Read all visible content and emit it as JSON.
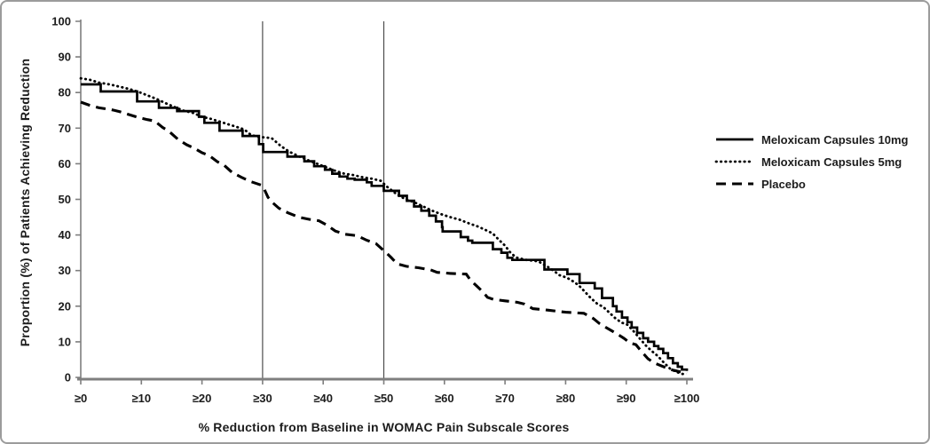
{
  "figure": {
    "background": "#ffffff",
    "border_color": "#9c9c9c"
  },
  "chart_data": {
    "type": "line",
    "title": "",
    "xlabel": "% Reduction from Baseline in WOMAC Pain Subscale Scores",
    "ylabel": "Proportion (%) of Patients Achieving Reduction",
    "xlim": [
      0,
      100
    ],
    "ylim": [
      0,
      100
    ],
    "grid": false,
    "legend_position": "right-outside",
    "axis_color": "#7f7f7f",
    "tick_text_color": "#1c1c1c",
    "reference_line_color": "#4d4d4d",
    "reference_lines_x": [
      30,
      50
    ],
    "x_tick_values": [
      0,
      10,
      20,
      30,
      40,
      50,
      60,
      70,
      80,
      90,
      100
    ],
    "x_tick_labels": [
      "≥0",
      "≥10",
      "≥20",
      "≥30",
      "≥40",
      "≥50",
      "≥60",
      "≥70",
      "≥80",
      "≥90",
      "≥100"
    ],
    "y_tick_values": [
      0,
      10,
      20,
      30,
      40,
      50,
      60,
      70,
      80,
      90,
      100
    ],
    "y_tick_labels": [
      "0",
      "10",
      "20",
      "30",
      "40",
      "50",
      "60",
      "70",
      "80",
      "90",
      "100"
    ],
    "series": [
      {
        "name": "Meloxicam Capsules 10mg",
        "style": "solid",
        "color": "#000000",
        "step": true,
        "points": [
          [
            0,
            82.3
          ],
          [
            3.2,
            82.3
          ],
          [
            3.3,
            80.3
          ],
          [
            9.2,
            80.3
          ],
          [
            9.3,
            77.5
          ],
          [
            12.8,
            77.5
          ],
          [
            12.9,
            75.7
          ],
          [
            15.8,
            75.7
          ],
          [
            15.9,
            74.8
          ],
          [
            19.4,
            74.8
          ],
          [
            19.5,
            73.2
          ],
          [
            20.3,
            73.2
          ],
          [
            20.4,
            71.5
          ],
          [
            22.8,
            71.5
          ],
          [
            22.9,
            69.3
          ],
          [
            26.6,
            69.3
          ],
          [
            26.7,
            67.8
          ],
          [
            29.3,
            67.8
          ],
          [
            29.4,
            65.5
          ],
          [
            30.0,
            65.5
          ],
          [
            30.1,
            63.3
          ],
          [
            34.0,
            63.3
          ],
          [
            34.1,
            62.0
          ],
          [
            36.8,
            62.0
          ],
          [
            36.9,
            60.7
          ],
          [
            38.4,
            60.7
          ],
          [
            38.5,
            59.3
          ],
          [
            40.3,
            58.3
          ],
          [
            41.5,
            57.2
          ],
          [
            42.7,
            56.4
          ],
          [
            44.0,
            55.8
          ],
          [
            45.2,
            55.5
          ],
          [
            47.2,
            54.8
          ],
          [
            48.0,
            53.8
          ],
          [
            49.9,
            53.8
          ],
          [
            50.0,
            52.4
          ],
          [
            51.5,
            52.4
          ],
          [
            52.5,
            51.0
          ],
          [
            53.8,
            49.6
          ],
          [
            55.0,
            48.0
          ],
          [
            56.2,
            46.8
          ],
          [
            57.5,
            45.4
          ],
          [
            58.6,
            43.8
          ],
          [
            59.6,
            42.2
          ],
          [
            59.7,
            41.0
          ],
          [
            62.6,
            41.0
          ],
          [
            62.7,
            39.4
          ],
          [
            63.9,
            38.4
          ],
          [
            64.6,
            37.8
          ],
          [
            67.9,
            37.8
          ],
          [
            68.0,
            36.0
          ],
          [
            69.4,
            35.0
          ],
          [
            70.4,
            33.6
          ],
          [
            71.2,
            33.0
          ],
          [
            76.4,
            33.0
          ],
          [
            76.5,
            30.3
          ],
          [
            80.2,
            30.3
          ],
          [
            80.3,
            29.0
          ],
          [
            82.2,
            29.0
          ],
          [
            82.3,
            26.5
          ],
          [
            84.7,
            26.5
          ],
          [
            84.8,
            25.0
          ],
          [
            85.9,
            25.0
          ],
          [
            86.0,
            22.3
          ],
          [
            87.7,
            22.3
          ],
          [
            87.8,
            20.0
          ],
          [
            88.4,
            18.5
          ],
          [
            89.3,
            16.8
          ],
          [
            90.2,
            15.5
          ],
          [
            90.9,
            14.0
          ],
          [
            91.8,
            12.5
          ],
          [
            92.8,
            11.0
          ],
          [
            93.6,
            10.0
          ],
          [
            94.6,
            8.8
          ],
          [
            95.3,
            8.0
          ],
          [
            96.1,
            6.8
          ],
          [
            96.9,
            5.4
          ],
          [
            97.7,
            4.0
          ],
          [
            98.5,
            3.0
          ],
          [
            99.2,
            2.2
          ],
          [
            100,
            1.8
          ]
        ]
      },
      {
        "name": "Meloxicam Capsules 5mg",
        "style": "dotted",
        "color": "#000000",
        "step": false,
        "points": [
          [
            0,
            84.0
          ],
          [
            1.5,
            83.6
          ],
          [
            3,
            82.8
          ],
          [
            5,
            82.2
          ],
          [
            6.5,
            81.6
          ],
          [
            8,
            81.0
          ],
          [
            9.5,
            80.2
          ],
          [
            11,
            79.2
          ],
          [
            12.5,
            78.2
          ],
          [
            14,
            77.0
          ],
          [
            15.5,
            75.9
          ],
          [
            17,
            74.9
          ],
          [
            18.5,
            74.3
          ],
          [
            20,
            73.2
          ],
          [
            21.5,
            72.6
          ],
          [
            23,
            71.8
          ],
          [
            24.5,
            71.0
          ],
          [
            26,
            70.2
          ],
          [
            27,
            69.6
          ],
          [
            28,
            68.2
          ],
          [
            29,
            67.6
          ],
          [
            31.5,
            67.2
          ],
          [
            33,
            65.0
          ],
          [
            34.5,
            63.3
          ],
          [
            36,
            62.1
          ],
          [
            37.5,
            61.0
          ],
          [
            39,
            60.0
          ],
          [
            40.5,
            59.0
          ],
          [
            42,
            58.0
          ],
          [
            43.5,
            57.2
          ],
          [
            45,
            56.8
          ],
          [
            46.5,
            56.2
          ],
          [
            48,
            55.8
          ],
          [
            49.5,
            55.2
          ],
          [
            50.5,
            53.6
          ],
          [
            52,
            51.6
          ],
          [
            53.5,
            50.1
          ],
          [
            55,
            49.2
          ],
          [
            56.5,
            48.0
          ],
          [
            58,
            46.8
          ],
          [
            59.5,
            45.8
          ],
          [
            61,
            45.0
          ],
          [
            62.5,
            44.3
          ],
          [
            64,
            43.3
          ],
          [
            65.5,
            42.4
          ],
          [
            66.8,
            41.4
          ],
          [
            68,
            40.4
          ],
          [
            69,
            38.6
          ],
          [
            70,
            37.0
          ],
          [
            70.8,
            35.2
          ],
          [
            71.8,
            33.7
          ],
          [
            73.5,
            33.0
          ],
          [
            75.5,
            32.6
          ],
          [
            77,
            31.1
          ],
          [
            78,
            30.0
          ],
          [
            79,
            28.7
          ],
          [
            80.2,
            28.0
          ],
          [
            81.2,
            27.0
          ],
          [
            82.2,
            25.8
          ],
          [
            83.2,
            24.0
          ],
          [
            84.2,
            22.2
          ],
          [
            85.2,
            20.7
          ],
          [
            86.2,
            19.8
          ],
          [
            87.2,
            18.2
          ],
          [
            88.2,
            16.6
          ],
          [
            89.2,
            15.4
          ],
          [
            90.2,
            14.8
          ],
          [
            91.2,
            13.0
          ],
          [
            92.2,
            11.0
          ],
          [
            93.2,
            9.0
          ],
          [
            94.2,
            7.4
          ],
          [
            95.2,
            6.0
          ],
          [
            96.2,
            4.2
          ],
          [
            97.2,
            2.5
          ],
          [
            98.2,
            1.6
          ],
          [
            99.2,
            1.0
          ],
          [
            100,
            0.8
          ]
        ]
      },
      {
        "name": "Placebo",
        "style": "dashed",
        "color": "#000000",
        "step": false,
        "points": [
          [
            0,
            77.3
          ],
          [
            1.5,
            76.4
          ],
          [
            3,
            75.7
          ],
          [
            5,
            75.2
          ],
          [
            6.5,
            74.6
          ],
          [
            8,
            73.8
          ],
          [
            9.5,
            73.0
          ],
          [
            11,
            72.4
          ],
          [
            12.2,
            72.0
          ],
          [
            13.5,
            70.2
          ],
          [
            14.5,
            69.2
          ],
          [
            16,
            66.9
          ],
          [
            17.5,
            65.3
          ],
          [
            18.7,
            64.4
          ],
          [
            20,
            63.1
          ],
          [
            21.2,
            62.3
          ],
          [
            22.5,
            60.6
          ],
          [
            23.7,
            59.5
          ],
          [
            25,
            57.5
          ],
          [
            26.5,
            56.2
          ],
          [
            28,
            55.0
          ],
          [
            29.8,
            54.0
          ],
          [
            30.3,
            52.8
          ],
          [
            30.9,
            50.6
          ],
          [
            31.7,
            49.0
          ],
          [
            32.7,
            47.5
          ],
          [
            34.2,
            46.2
          ],
          [
            36,
            45.0
          ],
          [
            37.7,
            44.4
          ],
          [
            39.3,
            44.0
          ],
          [
            40.6,
            42.8
          ],
          [
            42,
            41.1
          ],
          [
            43.6,
            40.2
          ],
          [
            45.6,
            39.8
          ],
          [
            47.2,
            38.5
          ],
          [
            48.7,
            37.6
          ],
          [
            49.8,
            35.9
          ],
          [
            50.4,
            35.0
          ],
          [
            51.2,
            33.7
          ],
          [
            52.2,
            31.9
          ],
          [
            53.7,
            31.2
          ],
          [
            55.7,
            30.8
          ],
          [
            57.7,
            30.2
          ],
          [
            58.8,
            29.5
          ],
          [
            61,
            29.2
          ],
          [
            63.6,
            29.0
          ],
          [
            64.3,
            27.3
          ],
          [
            65.3,
            25.7
          ],
          [
            66.3,
            24.1
          ],
          [
            67.1,
            22.5
          ],
          [
            68.1,
            21.9
          ],
          [
            70,
            21.5
          ],
          [
            72,
            21.1
          ],
          [
            73.2,
            20.6
          ],
          [
            74.6,
            19.3
          ],
          [
            77,
            18.9
          ],
          [
            80,
            18.3
          ],
          [
            83,
            18.0
          ],
          [
            84.6,
            16.5
          ],
          [
            85.6,
            15.1
          ],
          [
            86.4,
            14.3
          ],
          [
            87.6,
            13.1
          ],
          [
            88.4,
            12.3
          ],
          [
            89.6,
            11.0
          ],
          [
            90.6,
            9.7
          ],
          [
            91.6,
            9.2
          ],
          [
            92.6,
            7.1
          ],
          [
            93.6,
            5.2
          ],
          [
            94.6,
            4.1
          ],
          [
            95.6,
            3.4
          ],
          [
            96.6,
            2.7
          ],
          [
            97.6,
            2.1
          ],
          [
            98.6,
            1.7
          ],
          [
            100,
            1.2
          ]
        ]
      }
    ]
  },
  "legend": {
    "items": [
      {
        "label": "Meloxicam Capsules 10mg",
        "sample": "solid-line"
      },
      {
        "label": "Meloxicam Capsules 5mg",
        "sample": "dotted-line"
      },
      {
        "label": "Placebo",
        "sample": "dashed-line"
      }
    ]
  }
}
